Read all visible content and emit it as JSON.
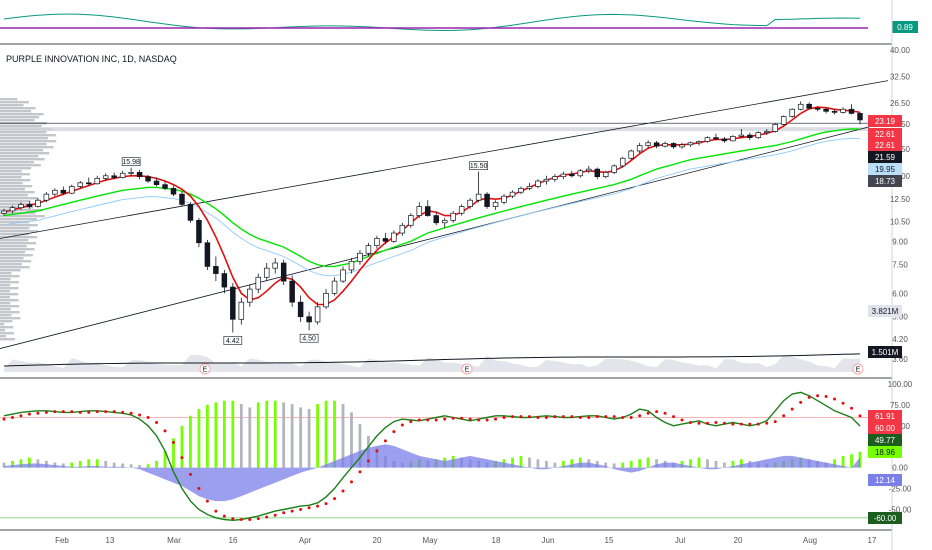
{
  "chart_data": {
    "type": "candlestick",
    "title": "PURPLE INNOVATION INC, 1D, NASDAQ",
    "x_dates": [
      "Feb",
      "13",
      "Mar",
      "16",
      "Apr",
      "20",
      "May",
      "18",
      "Jun",
      "15",
      "Jul",
      "20",
      "Aug",
      "17"
    ],
    "price_axis_ticks": [
      "40.00",
      "32.50",
      "26.50",
      "22.50",
      "18.50",
      "15.00",
      "12.50",
      "10.50",
      "9.00",
      "7.50",
      "6.00",
      "5.00",
      "4.20",
      "3.60"
    ],
    "ma_axis_ticks": [
      "100.00",
      "75.00",
      "50.00",
      "0.00",
      "-25.00",
      "-50.00"
    ],
    "top_indicator": {
      "value_label": "0.89",
      "line_color": "#089981",
      "level_color": "#9c27b0"
    },
    "callouts": [
      "15.98",
      "15.50",
      "4.42",
      "4.50"
    ],
    "price_labels": [
      {
        "text": "23.19",
        "color": "#f23645"
      },
      {
        "text": "22.61",
        "color": "#f23645"
      },
      {
        "text": "22.61",
        "color": "#f23645"
      },
      {
        "text": "21.59",
        "color": "#131722"
      },
      {
        "text": "19.95",
        "color": "#bbdefb"
      },
      {
        "text": "18.73",
        "color": "#434651"
      },
      {
        "text": "3.821M",
        "color": "#e0e3eb"
      },
      {
        "text": "1.501M",
        "color": "#131722"
      }
    ],
    "osc_labels": [
      {
        "text": "61.91",
        "color": "#f23645"
      },
      {
        "text": "60.00",
        "color": "#f23645"
      },
      {
        "text": "49.77",
        "color": "#1b5e20"
      },
      {
        "text": "18.96",
        "color": "#76ff03"
      },
      {
        "text": "12.14",
        "color": "#7b7fe8"
      },
      {
        "text": "-60.00",
        "color": "#1b5e20"
      }
    ],
    "price_series": [
      [
        11.2,
        11.6,
        11.0,
        11.4
      ],
      [
        11.4,
        11.9,
        11.2,
        11.7
      ],
      [
        11.7,
        12.2,
        11.5,
        12.0
      ],
      [
        12.0,
        12.3,
        11.6,
        11.8
      ],
      [
        11.8,
        12.6,
        11.7,
        12.4
      ],
      [
        12.4,
        13.2,
        12.2,
        13.0
      ],
      [
        13.0,
        13.6,
        12.8,
        13.4
      ],
      [
        13.4,
        13.8,
        12.9,
        13.1
      ],
      [
        13.1,
        14.0,
        13.0,
        13.8
      ],
      [
        13.8,
        14.4,
        13.6,
        14.2
      ],
      [
        14.2,
        14.8,
        13.9,
        14.1
      ],
      [
        14.1,
        15.0,
        14.0,
        14.7
      ],
      [
        14.7,
        15.3,
        14.4,
        15.0
      ],
      [
        15.0,
        15.4,
        14.6,
        14.8
      ],
      [
        14.8,
        15.6,
        14.7,
        15.3
      ],
      [
        15.3,
        15.98,
        15.0,
        15.4
      ],
      [
        15.4,
        15.7,
        14.6,
        14.9
      ],
      [
        14.9,
        15.1,
        14.2,
        14.4
      ],
      [
        14.4,
        14.8,
        13.8,
        14.0
      ],
      [
        14.0,
        14.4,
        13.4,
        13.6
      ],
      [
        13.6,
        13.9,
        12.8,
        13.0
      ],
      [
        13.0,
        13.3,
        11.8,
        12.0
      ],
      [
        12.0,
        12.2,
        10.4,
        10.6
      ],
      [
        10.6,
        10.8,
        8.6,
        8.9
      ],
      [
        8.9,
        9.1,
        7.2,
        7.4
      ],
      [
        7.4,
        8.0,
        6.6,
        7.0
      ],
      [
        7.0,
        7.2,
        6.0,
        6.3
      ],
      [
        6.3,
        6.5,
        4.42,
        4.9
      ],
      [
        4.9,
        5.8,
        4.7,
        5.6
      ],
      [
        5.6,
        6.4,
        5.4,
        6.2
      ],
      [
        6.2,
        7.0,
        6.0,
        6.8
      ],
      [
        6.8,
        7.6,
        6.6,
        7.3
      ],
      [
        7.3,
        7.9,
        7.0,
        7.6
      ],
      [
        7.6,
        7.8,
        6.4,
        6.6
      ],
      [
        6.6,
        6.9,
        5.4,
        5.6
      ],
      [
        5.6,
        5.9,
        4.8,
        5.0
      ],
      [
        5.0,
        5.2,
        4.5,
        4.8
      ],
      [
        4.8,
        5.6,
        4.7,
        5.4
      ],
      [
        5.4,
        6.2,
        5.3,
        6.0
      ],
      [
        6.0,
        6.8,
        5.9,
        6.6
      ],
      [
        6.6,
        7.4,
        6.5,
        7.2
      ],
      [
        7.2,
        7.9,
        7.0,
        7.7
      ],
      [
        7.7,
        8.4,
        7.5,
        8.2
      ],
      [
        8.2,
        8.9,
        8.0,
        8.7
      ],
      [
        8.7,
        9.4,
        8.5,
        9.2
      ],
      [
        9.2,
        9.6,
        8.8,
        9.0
      ],
      [
        9.0,
        9.8,
        8.9,
        9.6
      ],
      [
        9.6,
        10.4,
        9.4,
        10.2
      ],
      [
        10.2,
        11.2,
        10.0,
        11.0
      ],
      [
        11.0,
        12.2,
        10.8,
        11.8
      ],
      [
        11.8,
        12.4,
        10.9,
        11.0
      ],
      [
        11.0,
        11.3,
        10.2,
        10.4
      ],
      [
        10.4,
        10.8,
        10.0,
        10.6
      ],
      [
        10.6,
        11.4,
        10.4,
        11.2
      ],
      [
        11.2,
        12.0,
        11.0,
        11.8
      ],
      [
        11.8,
        12.6,
        11.6,
        12.4
      ],
      [
        12.4,
        15.5,
        12.2,
        13.0
      ],
      [
        13.0,
        13.2,
        11.6,
        11.8
      ],
      [
        11.8,
        12.4,
        11.5,
        12.2
      ],
      [
        12.2,
        13.0,
        12.0,
        12.8
      ],
      [
        12.8,
        13.4,
        12.6,
        13.2
      ],
      [
        13.2,
        13.8,
        13.0,
        13.6
      ],
      [
        13.6,
        14.2,
        13.4,
        13.8
      ],
      [
        13.8,
        14.6,
        13.6,
        14.4
      ],
      [
        14.4,
        15.0,
        14.0,
        14.6
      ],
      [
        14.6,
        15.2,
        14.3,
        14.9
      ],
      [
        14.9,
        15.5,
        14.6,
        15.2
      ],
      [
        15.2,
        15.6,
        14.8,
        15.0
      ],
      [
        15.0,
        15.8,
        14.8,
        15.6
      ],
      [
        15.6,
        16.2,
        15.3,
        15.8
      ],
      [
        15.8,
        16.0,
        14.6,
        14.9
      ],
      [
        14.9,
        15.6,
        14.7,
        15.4
      ],
      [
        15.4,
        16.4,
        15.2,
        16.2
      ],
      [
        16.2,
        17.4,
        16.0,
        17.2
      ],
      [
        17.2,
        18.4,
        17.0,
        18.2
      ],
      [
        18.2,
        19.4,
        17.9,
        19.0
      ],
      [
        19.0,
        19.8,
        18.6,
        19.4
      ],
      [
        19.4,
        19.7,
        18.6,
        18.9
      ],
      [
        18.9,
        19.6,
        18.7,
        19.3
      ],
      [
        19.3,
        19.5,
        18.5,
        18.8
      ],
      [
        18.8,
        19.4,
        18.5,
        19.1
      ],
      [
        19.1,
        19.6,
        18.8,
        19.4
      ],
      [
        19.4,
        19.8,
        19.0,
        19.6
      ],
      [
        19.6,
        20.4,
        19.4,
        20.2
      ],
      [
        20.2,
        20.8,
        19.8,
        20.0
      ],
      [
        20.0,
        20.3,
        19.4,
        19.7
      ],
      [
        19.7,
        20.6,
        19.6,
        20.4
      ],
      [
        20.4,
        21.6,
        20.2,
        20.6
      ],
      [
        20.6,
        21.0,
        19.8,
        20.2
      ],
      [
        20.2,
        21.2,
        20.0,
        21.0
      ],
      [
        21.0,
        21.6,
        20.6,
        21.2
      ],
      [
        21.2,
        22.6,
        21.0,
        22.4
      ],
      [
        22.4,
        24.0,
        22.2,
        23.8
      ],
      [
        23.8,
        25.4,
        23.6,
        25.2
      ],
      [
        25.2,
        26.8,
        25.0,
        26.2
      ],
      [
        26.2,
        26.6,
        25.2,
        25.4
      ],
      [
        25.4,
        25.8,
        24.8,
        25.2
      ],
      [
        25.2,
        25.5,
        24.4,
        24.8
      ],
      [
        24.8,
        25.2,
        24.2,
        24.6
      ],
      [
        24.6,
        25.6,
        24.4,
        25.2
      ],
      [
        25.2,
        26.2,
        24.2,
        24.4
      ],
      [
        24.4,
        24.6,
        22.4,
        23.19
      ]
    ],
    "ma_fast": [
      11.3,
      11.5,
      11.7,
      11.9,
      12.1,
      12.4,
      12.7,
      13.0,
      13.3,
      13.6,
      13.9,
      14.2,
      14.5,
      14.7,
      14.9,
      15.0,
      15.0,
      14.9,
      14.7,
      14.4,
      14.0,
      13.5,
      12.8,
      11.8,
      10.6,
      9.3,
      8.0,
      6.8,
      6.0,
      5.7,
      5.8,
      6.1,
      6.5,
      6.8,
      6.7,
      6.3,
      5.8,
      5.5,
      5.5,
      5.7,
      6.1,
      6.6,
      7.2,
      7.8,
      8.4,
      8.9,
      9.3,
      9.8,
      10.4,
      11.0,
      11.4,
      11.3,
      11.0,
      11.0,
      11.3,
      11.8,
      12.4,
      12.6,
      12.5,
      12.6,
      12.9,
      13.3,
      13.7,
      14.1,
      14.5,
      14.8,
      15.1,
      15.2,
      15.4,
      15.6,
      15.5,
      15.4,
      15.6,
      16.1,
      16.9,
      17.8,
      18.6,
      19.0,
      19.1,
      19.1,
      19.1,
      19.2,
      19.4,
      19.7,
      19.9,
      19.9,
      20.0,
      20.2,
      20.4,
      20.6,
      20.9,
      21.3,
      22.1,
      23.2,
      24.4,
      25.3,
      25.6,
      25.5,
      25.2,
      25.0,
      24.9,
      24.6
    ],
    "ma_slow": [
      11.0,
      11.1,
      11.2,
      11.3,
      11.4,
      11.6,
      11.8,
      12.0,
      12.2,
      12.4,
      12.6,
      12.8,
      13.0,
      13.2,
      13.4,
      13.5,
      13.6,
      13.7,
      13.7,
      13.6,
      13.5,
      13.3,
      13.0,
      12.6,
      12.1,
      11.6,
      11.0,
      10.4,
      9.9,
      9.5,
      9.2,
      9.0,
      8.8,
      8.6,
      8.3,
      8.0,
      7.7,
      7.5,
      7.4,
      7.4,
      7.5,
      7.6,
      7.8,
      8.0,
      8.2,
      8.4,
      8.6,
      8.8,
      9.0,
      9.3,
      9.6,
      9.8,
      10.0,
      10.2,
      10.4,
      10.6,
      10.8,
      11.0,
      11.2,
      11.4,
      11.6,
      11.8,
      12.0,
      12.2,
      12.4,
      12.6,
      12.8,
      13.0,
      13.2,
      13.4,
      13.6,
      13.8,
      14.0,
      14.3,
      14.6,
      15.0,
      15.4,
      15.8,
      16.1,
      16.4,
      16.7,
      17.0,
      17.2,
      17.4,
      17.6,
      17.8,
      18.0,
      18.2,
      18.4,
      18.6,
      18.8,
      19.0,
      19.3,
      19.6,
      20.0,
      20.4,
      20.8,
      21.1,
      21.3,
      21.5,
      21.6,
      21.59
    ],
    "osc_k": [
      62,
      64,
      66,
      67,
      68,
      68,
      67,
      66,
      66,
      67,
      68,
      68,
      67,
      66,
      65,
      63,
      58,
      50,
      38,
      20,
      -5,
      -25,
      -40,
      -50,
      -56,
      -60,
      -62,
      -63,
      -62,
      -60,
      -58,
      -55,
      -52,
      -50,
      -48,
      -46,
      -45,
      -42,
      -35,
      -25,
      -12,
      0,
      12,
      25,
      38,
      48,
      55,
      58,
      57,
      56,
      58,
      60,
      62,
      60,
      58,
      56,
      58,
      60,
      62,
      62,
      61,
      60,
      60,
      61,
      62,
      61,
      60,
      60,
      61,
      62,
      62,
      60,
      58,
      60,
      64,
      70,
      68,
      60,
      54,
      50,
      52,
      54,
      56,
      52,
      50,
      52,
      54,
      52,
      50,
      52,
      56,
      68,
      80,
      88,
      90,
      86,
      80,
      74,
      68,
      64,
      60,
      49.77
    ],
    "osc_d": [
      58,
      60,
      62,
      64,
      65,
      66,
      67,
      67,
      67,
      66,
      66,
      67,
      67,
      67,
      66,
      65,
      63,
      60,
      54,
      44,
      30,
      12,
      -8,
      -25,
      -40,
      -52,
      -58,
      -61,
      -62,
      -62,
      -61,
      -59,
      -57,
      -54,
      -52,
      -50,
      -48,
      -46,
      -43,
      -37,
      -28,
      -17,
      -5,
      8,
      20,
      32,
      43,
      51,
      55,
      57,
      57,
      57,
      58,
      59,
      59,
      58,
      57,
      57,
      58,
      60,
      61,
      61,
      61,
      60,
      60,
      61,
      61,
      61,
      60,
      60,
      61,
      61,
      61,
      60,
      60,
      62,
      65,
      67,
      65,
      61,
      57,
      54,
      53,
      53,
      54,
      53,
      52,
      52,
      52,
      52,
      53,
      55,
      62,
      70,
      78,
      84,
      86,
      85,
      82,
      77,
      71,
      61.91
    ],
    "osc_hist": [
      2,
      3,
      4,
      5,
      5,
      4,
      3,
      2,
      1,
      1,
      2,
      2,
      1,
      1,
      1,
      0,
      -2,
      -6,
      -10,
      -14,
      -18,
      -22,
      -28,
      -34,
      -38,
      -40,
      -40,
      -38,
      -34,
      -30,
      -26,
      -22,
      -18,
      -14,
      -10,
      -6,
      -3,
      0,
      4,
      8,
      12,
      16,
      20,
      24,
      26,
      28,
      26,
      22,
      18,
      14,
      12,
      10,
      8,
      10,
      12,
      14,
      12,
      10,
      8,
      6,
      4,
      2,
      0,
      -2,
      -2,
      0,
      2,
      4,
      6,
      6,
      4,
      2,
      -2,
      -4,
      -6,
      -4,
      0,
      4,
      6,
      6,
      4,
      2,
      0,
      -2,
      -2,
      0,
      2,
      4,
      6,
      8,
      10,
      12,
      14,
      14,
      12,
      10,
      8,
      6,
      4,
      2,
      0,
      12.14
    ],
    "osc_bars": [
      6,
      8,
      10,
      12,
      10,
      8,
      6,
      5,
      6,
      8,
      10,
      10,
      8,
      6,
      5,
      4,
      3,
      4,
      8,
      20,
      35,
      50,
      62,
      70,
      75,
      78,
      80,
      80,
      76,
      72,
      78,
      80,
      80,
      78,
      76,
      72,
      70,
      76,
      80,
      80,
      76,
      66,
      52,
      38,
      24,
      14,
      8,
      6,
      8,
      10,
      8,
      10,
      12,
      14,
      12,
      10,
      8,
      6,
      8,
      10,
      12,
      14,
      12,
      10,
      8,
      6,
      8,
      10,
      12,
      10,
      8,
      6,
      5,
      6,
      8,
      10,
      12,
      10,
      8,
      6,
      8,
      10,
      12,
      10,
      8,
      6,
      8,
      10,
      8,
      6,
      5,
      6,
      8,
      10,
      12,
      10,
      8,
      6,
      10,
      14,
      16,
      18.96
    ]
  }
}
